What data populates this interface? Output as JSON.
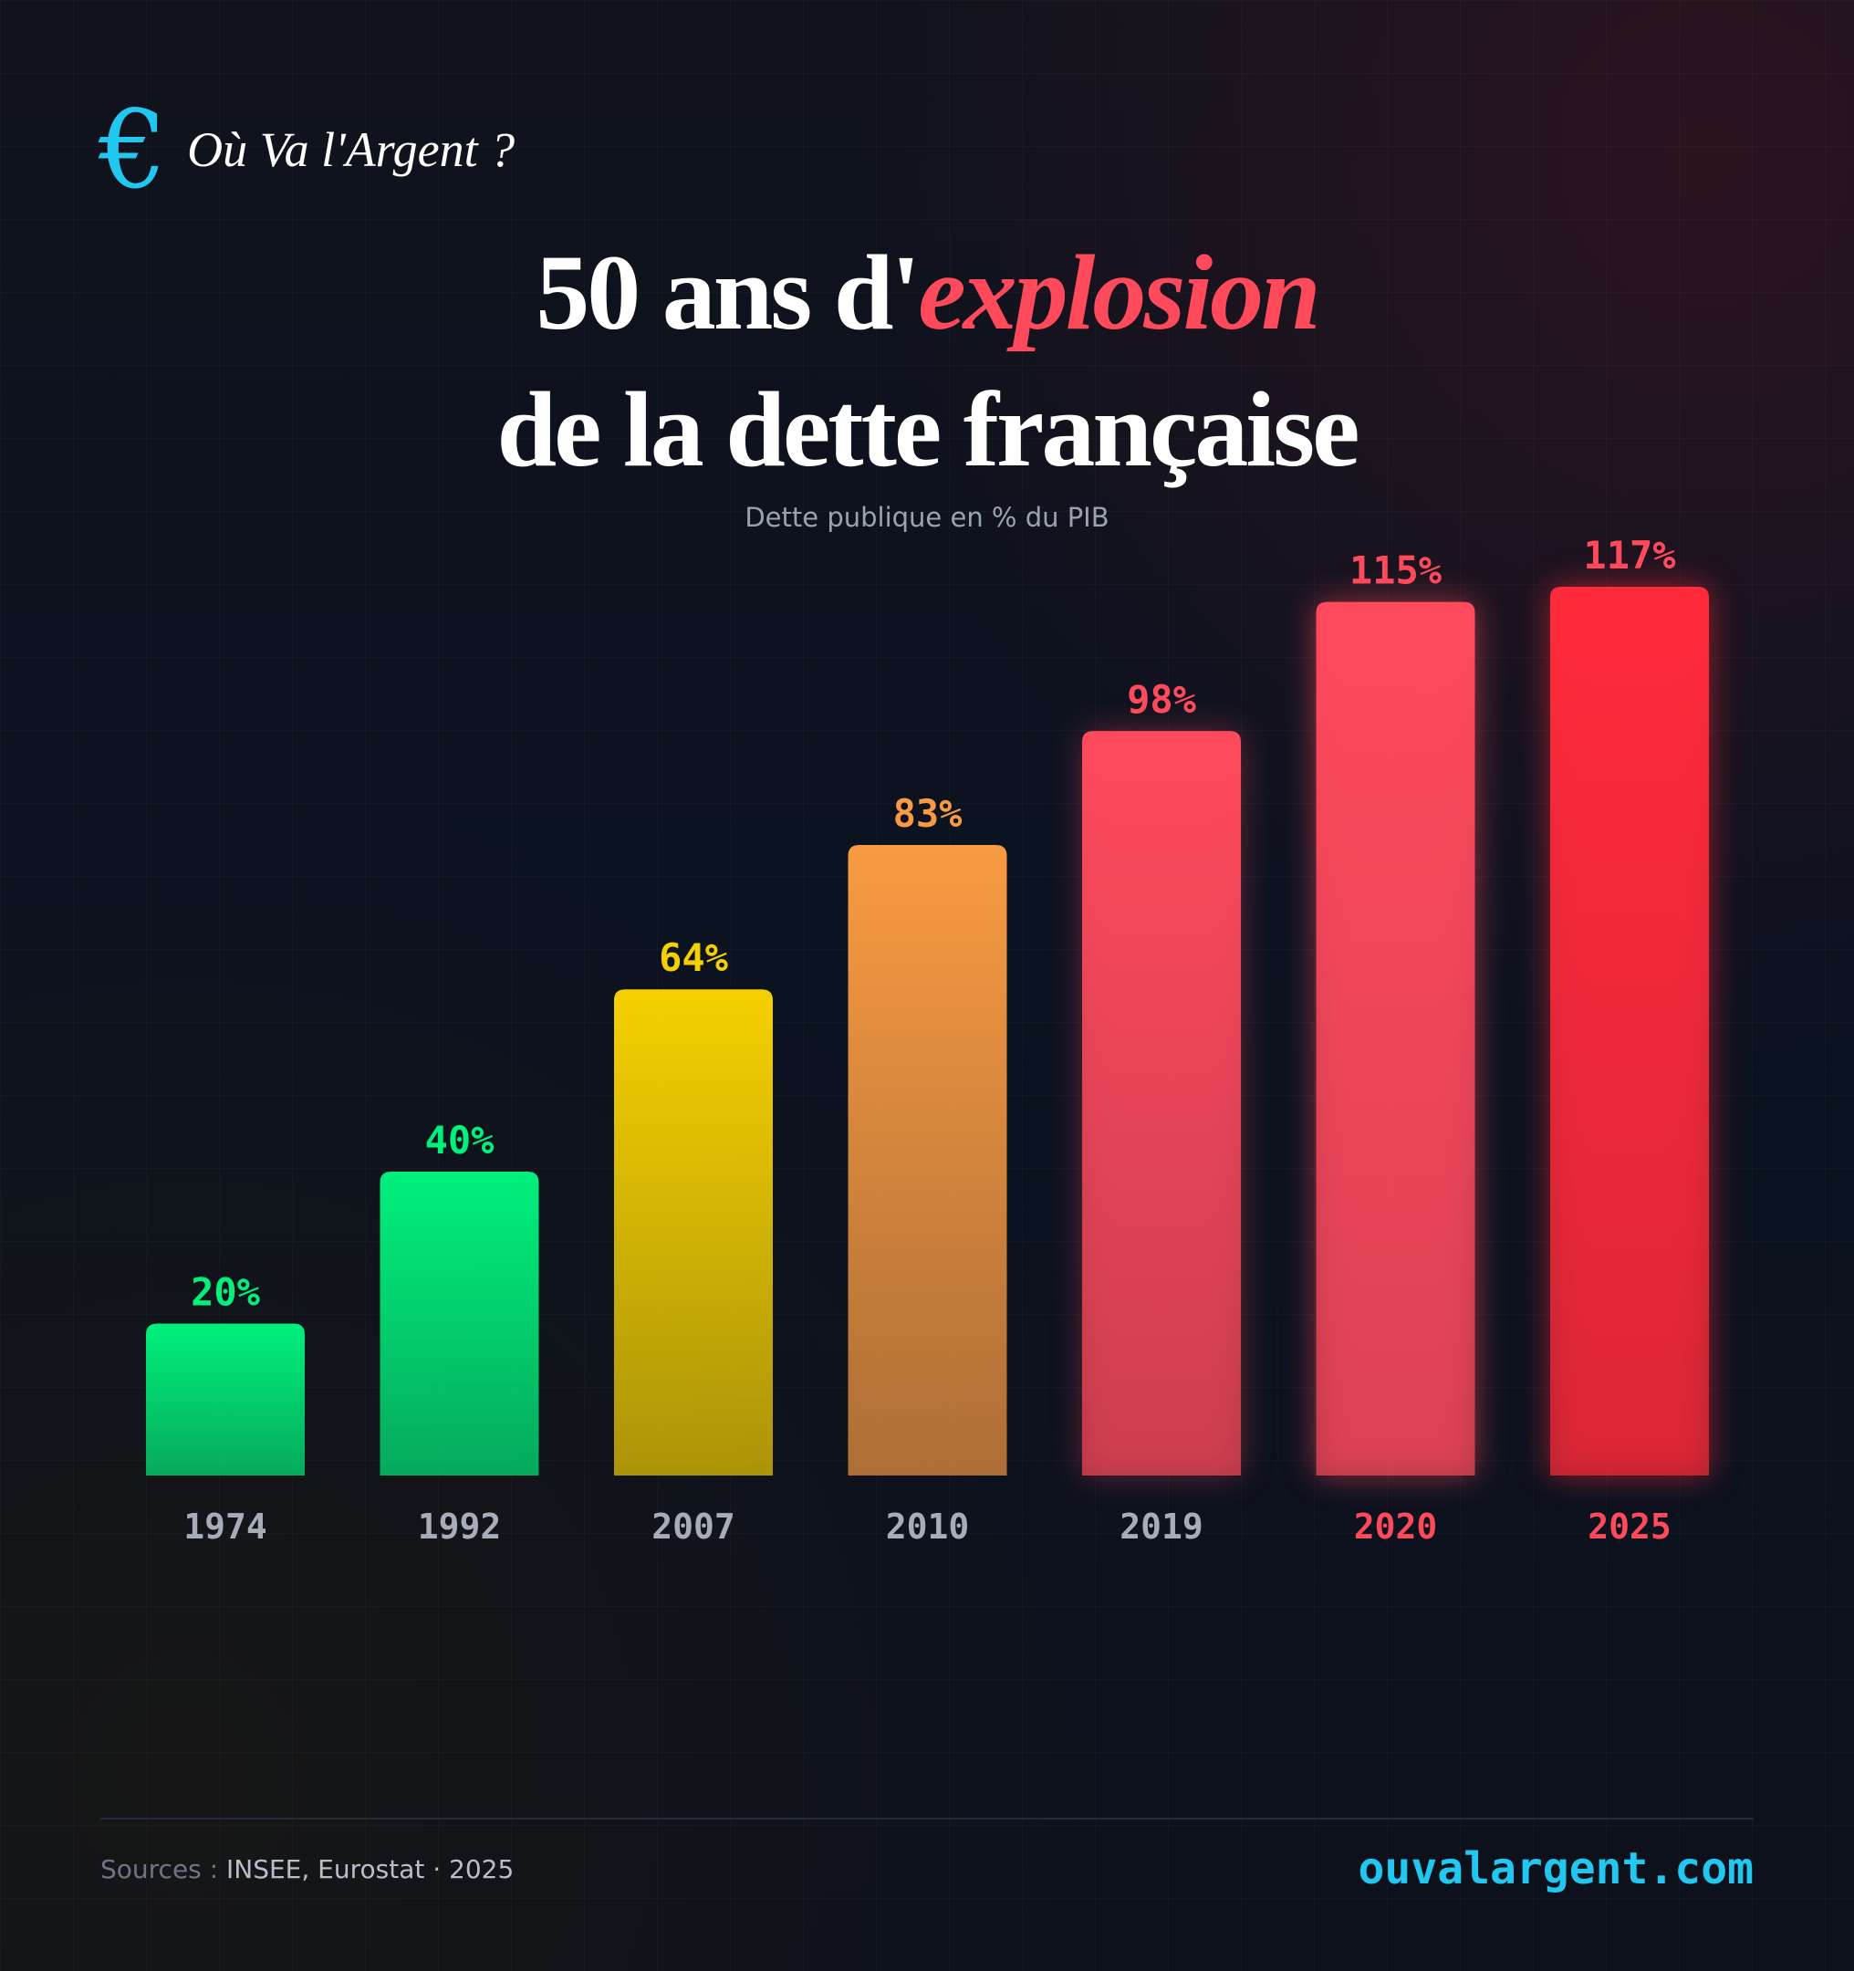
{
  "brand": {
    "icon": "euro-icon",
    "icon_glyph": "€",
    "name": "Où Va l'Argent ?"
  },
  "title": {
    "line1_prefix": "50 ans d'",
    "line1_accent": "explosion",
    "line2": "de la dette française"
  },
  "subtitle": "Dette publique en % du PIB",
  "colors": {
    "green": "#00f07c",
    "yellow": "#f5d000",
    "orange": "#f89a42",
    "red": "#ff4a5c",
    "accent": "#22c7f0"
  },
  "chart_data": {
    "type": "bar",
    "categories": [
      "1974",
      "1992",
      "2007",
      "2010",
      "2019",
      "2020",
      "2025"
    ],
    "values": [
      20,
      40,
      64,
      83,
      98,
      115,
      117
    ],
    "value_labels": [
      "20%",
      "40%",
      "64%",
      "83%",
      "98%",
      "115%",
      "117%"
    ],
    "unit": "%",
    "ylim": [
      0,
      117
    ],
    "grid": false,
    "legend": "none",
    "bar_colors": [
      "#00f07c",
      "#00f07c",
      "#f5d000",
      "#f89a42",
      "#ff4a5c",
      "#ff4a5c",
      "#ff2a3a"
    ],
    "category_label_colors": [
      "#a7adb8",
      "#a7adb8",
      "#a7adb8",
      "#a7adb8",
      "#a7adb8",
      "#ff4a5c",
      "#ff4a5c"
    ]
  },
  "footer": {
    "sources_prefix": "Sources : ",
    "sources_value": "INSEE, Eurostat · 2025",
    "website": "ouvalargent.com"
  }
}
